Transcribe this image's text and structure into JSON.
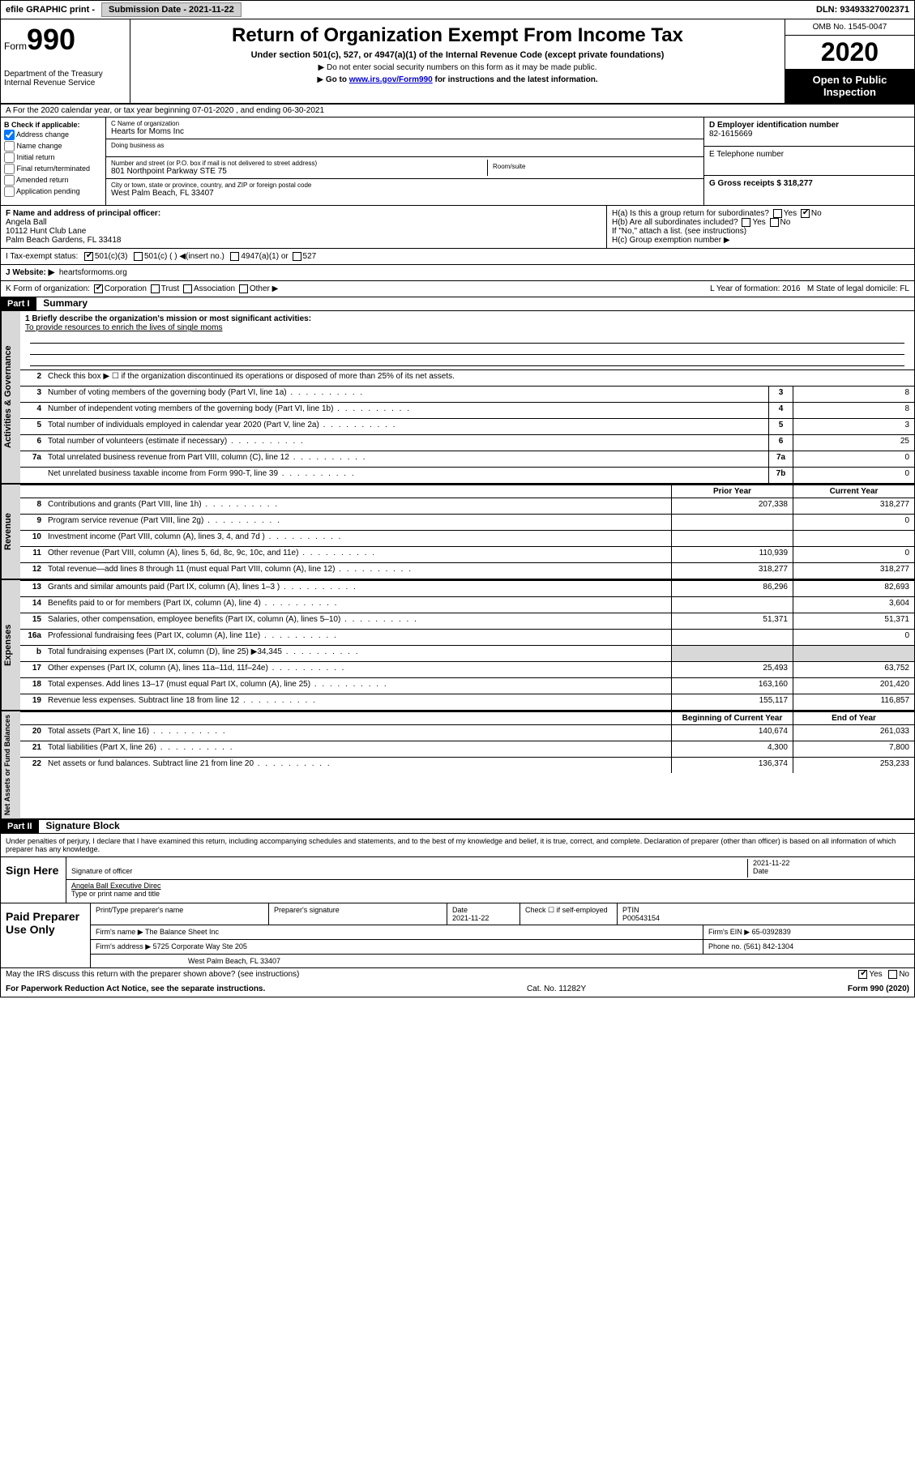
{
  "topbar": {
    "efile": "efile GRAPHIC print -",
    "submission": "Submission Date - 2021-11-22",
    "dln": "DLN: 93493327002371"
  },
  "header": {
    "form": "Form",
    "form_no": "990",
    "dept": "Department of the Treasury\nInternal Revenue Service",
    "title": "Return of Organization Exempt From Income Tax",
    "sub": "Under section 501(c), 527, or 4947(a)(1) of the Internal Revenue Code (except private foundations)",
    "note1": "Do not enter social security numbers on this form as it may be made public.",
    "note2_pre": "Go to ",
    "note2_link": "www.irs.gov/Form990",
    "note2_post": " for instructions and the latest information.",
    "omb": "OMB No. 1545-0047",
    "year": "2020",
    "opi": "Open to Public Inspection"
  },
  "row_a": "A For the 2020 calendar year, or tax year beginning 07-01-2020   , and ending 06-30-2021",
  "section_b": {
    "label": "B Check if applicable:",
    "items": [
      {
        "label": "Address change",
        "checked": true
      },
      {
        "label": "Name change",
        "checked": false
      },
      {
        "label": "Initial return",
        "checked": false
      },
      {
        "label": "Final return/terminated",
        "checked": false
      },
      {
        "label": "Amended return",
        "checked": false
      },
      {
        "label": "Application pending",
        "checked": false
      }
    ]
  },
  "section_c": {
    "name_label": "C Name of organization",
    "name": "Hearts for Moms Inc",
    "dba_label": "Doing business as",
    "dba": "",
    "addr_label": "Number and street (or P.O. box if mail is not delivered to street address)",
    "room_label": "Room/suite",
    "addr": "801 Northpoint Parkway STE 75",
    "city_label": "City or town, state or province, country, and ZIP or foreign postal code",
    "city": "West Palm Beach, FL  33407"
  },
  "section_d": {
    "label": "D Employer identification number",
    "value": "82-1615669"
  },
  "section_e": {
    "label": "E Telephone number",
    "value": ""
  },
  "section_g": {
    "label": "G Gross receipts $ 318,277"
  },
  "section_f": {
    "label": "F  Name and address of principal officer:",
    "name": "Angela Ball",
    "addr1": "10112 Hunt Club Lane",
    "addr2": "Palm Beach Gardens, FL  33418"
  },
  "section_h": {
    "ha": "H(a)  Is this a group return for subordinates?",
    "ha_yes": false,
    "ha_no": true,
    "hb": "H(b)  Are all subordinates included?",
    "hb_note": "If \"No,\" attach a list. (see instructions)",
    "hc": "H(c)  Group exemption number ▶"
  },
  "tax_status": {
    "label": "I  Tax-exempt status:",
    "c3": true,
    "c_other": false,
    "insert": "(insert no.)",
    "a4947": "4947(a)(1) or",
    "s527": "527"
  },
  "website": {
    "label": "J Website: ▶",
    "value": "heartsformoms.org"
  },
  "row_k": {
    "label": "K Form of organization:",
    "corp": true,
    "trust": false,
    "assoc": false,
    "other": false,
    "l": "L Year of formation: 2016",
    "m": "M State of legal domicile: FL"
  },
  "part1": {
    "hdr": "Part I",
    "title": "Summary",
    "vtab_gov": "Activities & Governance",
    "mission_label": "1  Briefly describe the organization's mission or most significant activities:",
    "mission": "To provide resources to enrich the lives of single moms",
    "line2": "Check this box ▶ ☐ if the organization discontinued its operations or disposed of more than 25% of its net assets.",
    "lines_gov": [
      {
        "n": "3",
        "d": "Number of voting members of the governing body (Part VI, line 1a)",
        "box": "3",
        "v": "8"
      },
      {
        "n": "4",
        "d": "Number of independent voting members of the governing body (Part VI, line 1b)",
        "box": "4",
        "v": "8"
      },
      {
        "n": "5",
        "d": "Total number of individuals employed in calendar year 2020 (Part V, line 2a)",
        "box": "5",
        "v": "3"
      },
      {
        "n": "6",
        "d": "Total number of volunteers (estimate if necessary)",
        "box": "6",
        "v": "25"
      },
      {
        "n": "7a",
        "d": "Total unrelated business revenue from Part VIII, column (C), line 12",
        "box": "7a",
        "v": "0"
      },
      {
        "n": "",
        "d": "Net unrelated business taxable income from Form 990-T, line 39",
        "box": "7b",
        "v": "0"
      }
    ],
    "vtab_rev": "Revenue",
    "hdr_prior": "Prior Year",
    "hdr_current": "Current Year",
    "lines_rev": [
      {
        "n": "8",
        "d": "Contributions and grants (Part VIII, line 1h)",
        "p": "207,338",
        "c": "318,277"
      },
      {
        "n": "9",
        "d": "Program service revenue (Part VIII, line 2g)",
        "p": "",
        "c": "0"
      },
      {
        "n": "10",
        "d": "Investment income (Part VIII, column (A), lines 3, 4, and 7d )",
        "p": "",
        "c": ""
      },
      {
        "n": "11",
        "d": "Other revenue (Part VIII, column (A), lines 5, 6d, 8c, 9c, 10c, and 11e)",
        "p": "110,939",
        "c": "0"
      },
      {
        "n": "12",
        "d": "Total revenue—add lines 8 through 11 (must equal Part VIII, column (A), line 12)",
        "p": "318,277",
        "c": "318,277"
      }
    ],
    "vtab_exp": "Expenses",
    "lines_exp": [
      {
        "n": "13",
        "d": "Grants and similar amounts paid (Part IX, column (A), lines 1–3 )",
        "p": "86,296",
        "c": "82,693"
      },
      {
        "n": "14",
        "d": "Benefits paid to or for members (Part IX, column (A), line 4)",
        "p": "",
        "c": "3,604"
      },
      {
        "n": "15",
        "d": "Salaries, other compensation, employee benefits (Part IX, column (A), lines 5–10)",
        "p": "51,371",
        "c": "51,371"
      },
      {
        "n": "16a",
        "d": "Professional fundraising fees (Part IX, column (A), line 11e)",
        "p": "",
        "c": "0"
      },
      {
        "n": "b",
        "d": "Total fundraising expenses (Part IX, column (D), line 25) ▶34,345",
        "p": "shade",
        "c": "shade"
      },
      {
        "n": "17",
        "d": "Other expenses (Part IX, column (A), lines 11a–11d, 11f–24e)",
        "p": "25,493",
        "c": "63,752"
      },
      {
        "n": "18",
        "d": "Total expenses. Add lines 13–17 (must equal Part IX, column (A), line 25)",
        "p": "163,160",
        "c": "201,420"
      },
      {
        "n": "19",
        "d": "Revenue less expenses. Subtract line 18 from line 12",
        "p": "155,117",
        "c": "116,857"
      }
    ],
    "vtab_net": "Net Assets or Fund Balances",
    "hdr_begin": "Beginning of Current Year",
    "hdr_end": "End of Year",
    "lines_net": [
      {
        "n": "20",
        "d": "Total assets (Part X, line 16)",
        "p": "140,674",
        "c": "261,033"
      },
      {
        "n": "21",
        "d": "Total liabilities (Part X, line 26)",
        "p": "4,300",
        "c": "7,800"
      },
      {
        "n": "22",
        "d": "Net assets or fund balances. Subtract line 21 from line 20",
        "p": "136,374",
        "c": "253,233"
      }
    ]
  },
  "part2": {
    "hdr": "Part II",
    "title": "Signature Block",
    "perjury": "Under penalties of perjury, I declare that I have examined this return, including accompanying schedules and statements, and to the best of my knowledge and belief, it is true, correct, and complete. Declaration of preparer (other than officer) is based on all information of which preparer has any knowledge.",
    "sign_here": "Sign Here",
    "sig_officer": "Signature of officer",
    "sig_date": "2021-11-22",
    "sig_date_lbl": "Date",
    "typed_name": "Angela Ball  Executive Direc",
    "typed_lbl": "Type or print name and title",
    "paid": "Paid Preparer Use Only",
    "prep_name_lbl": "Print/Type preparer's name",
    "prep_sig_lbl": "Preparer's signature",
    "prep_date_lbl": "Date",
    "prep_date": "2021-11-22",
    "self_emp": "Check ☐ if self-employed",
    "ptin_lbl": "PTIN",
    "ptin": "P00543154",
    "firm_name_lbl": "Firm's name    ▶",
    "firm_name": "The Balance Sheet Inc",
    "firm_ein_lbl": "Firm's EIN ▶",
    "firm_ein": "65-0392839",
    "firm_addr_lbl": "Firm's address ▶",
    "firm_addr1": "5725 Corporate Way Ste 205",
    "firm_addr2": "West Palm Beach, FL  33407",
    "phone_lbl": "Phone no.",
    "phone": "(561) 842-1304",
    "discuss": "May the IRS discuss this return with the preparer shown above? (see instructions)",
    "discuss_yes": true,
    "discuss_no": false
  },
  "footer": {
    "pra": "For Paperwork Reduction Act Notice, see the separate instructions.",
    "cat": "Cat. No. 11282Y",
    "form": "Form 990 (2020)"
  }
}
